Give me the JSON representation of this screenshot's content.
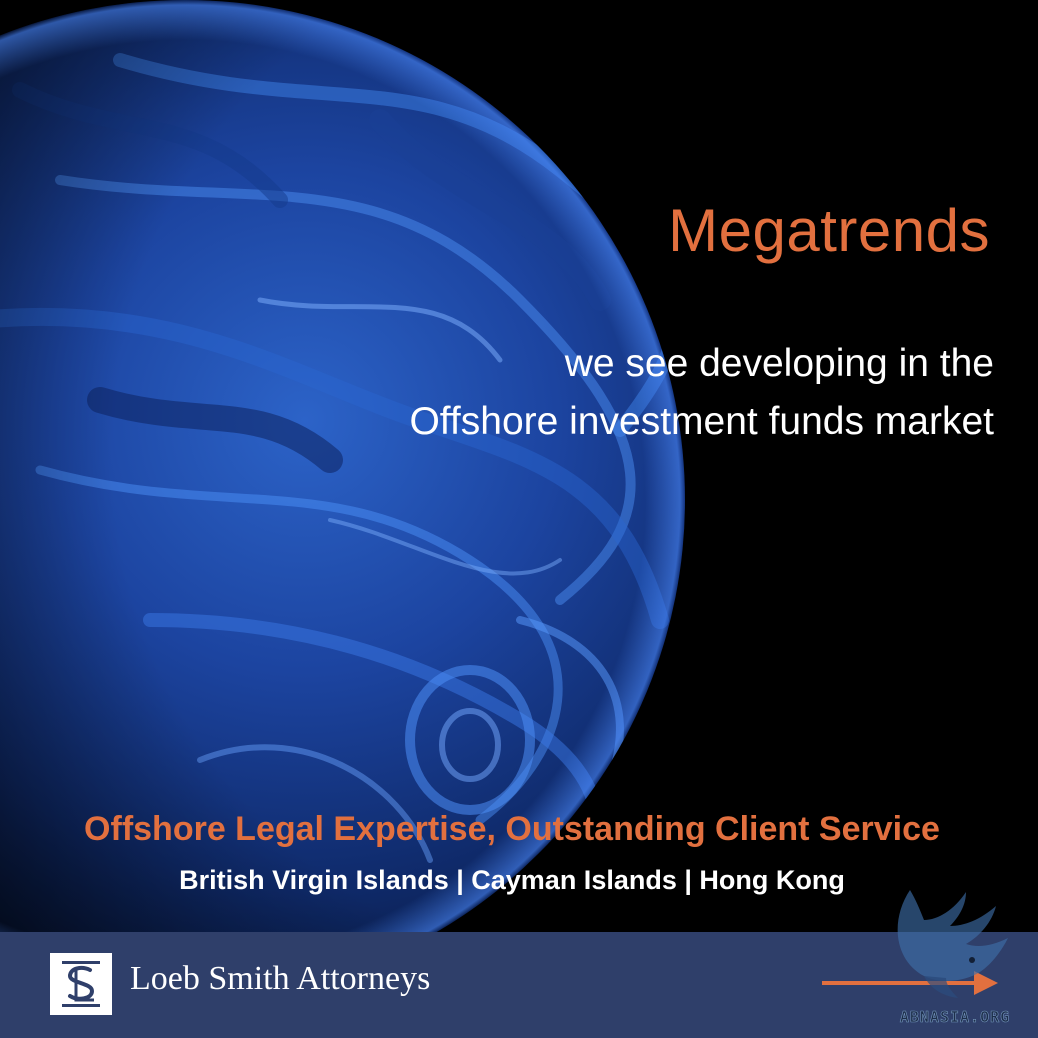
{
  "hero": {
    "title": "Megatrends",
    "subtitle_line1": "we see developing in the",
    "subtitle_line2": "Offshore investment funds market"
  },
  "tagline": "Offshore Legal Expertise, Outstanding Client Service",
  "locations": "British Virgin Islands | Cayman Islands | Hong Kong",
  "footer": {
    "logo_text": "LS",
    "firm_name": "Loeb Smith Attorneys"
  },
  "watermark": {
    "text": "ABNASIA.ORG"
  },
  "icons": {
    "planet": "planet-image",
    "logo": "loeb-smith-logo-icon",
    "next": "arrow-right-icon",
    "watermark": "bird-watermark-icon"
  },
  "colors": {
    "background": "#000000",
    "accent": "#e2703f",
    "footer_bar": "#2f3f6a",
    "text": "#ffffff",
    "planet_blue": "#1f4fb0"
  }
}
